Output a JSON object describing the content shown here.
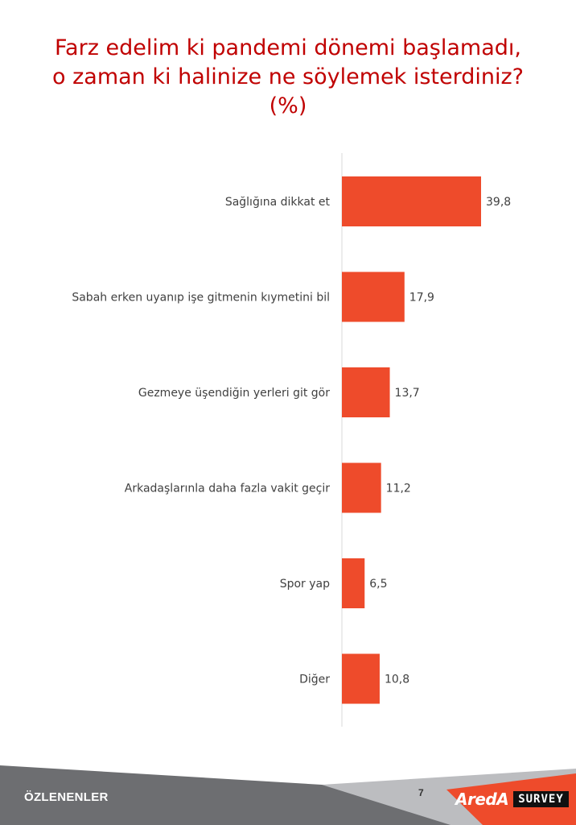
{
  "title_lines": [
    "Farz edelim ki pandemi dönemi başlamadı,",
    "o zaman ki halinize ne söylemek isterdiniz?",
    "(%)"
  ],
  "colors": {
    "bar": "#EE4B2B",
    "title": "#C00000",
    "footer_dark": "#6D6E71",
    "footer_light": "#BCBDC0",
    "footer_accent": "#EE4B2B"
  },
  "chart_data": {
    "type": "bar",
    "orientation": "horizontal",
    "categories": [
      "Sağlığına dikkat et",
      "Sabah erken uyanıp işe gitmenin kıymetini bil",
      "Gezmeye üşendiğin yerleri git gör",
      "Arkadaşlarınla daha fazla vakit geçir",
      "Spor yap",
      "Diğer"
    ],
    "values": [
      39.8,
      17.9,
      13.7,
      11.2,
      6.5,
      10.8
    ],
    "value_labels": [
      "39,8",
      "17,9",
      "13,7",
      "11,2",
      "6,5",
      "10,8"
    ],
    "title": "Farz edelim ki pandemi dönemi başlamadı, o zaman ki halinize ne söylemek isterdiniz? (%)",
    "xlabel": "",
    "ylabel": "",
    "xlim": [
      0,
      40
    ],
    "grid": false,
    "legend": "none"
  },
  "footer": {
    "section": "ÖZLENENLER",
    "page_number": "7",
    "brand_mark": "AredA",
    "brand_box": "SURVEY"
  }
}
